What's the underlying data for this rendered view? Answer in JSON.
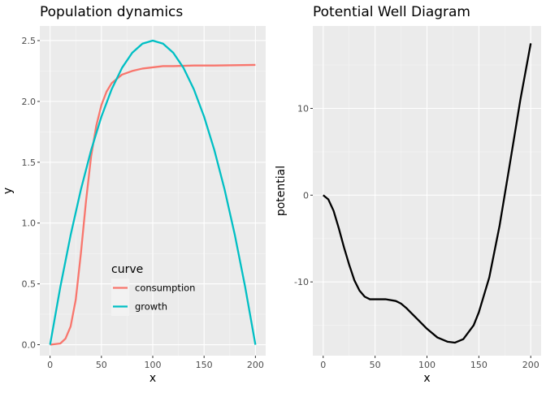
{
  "chart_data": [
    {
      "type": "line",
      "title": "Population dynamics",
      "xlabel": "x",
      "ylabel": "y",
      "xlim": [
        -10,
        210
      ],
      "ylim": [
        -0.09,
        2.62
      ],
      "x_ticks": [
        0,
        50,
        100,
        150,
        200
      ],
      "y_ticks": [
        0.0,
        0.5,
        1.0,
        1.5,
        2.0,
        2.5
      ],
      "x_tick_labels": [
        "0",
        "50",
        "100",
        "150",
        "200"
      ],
      "y_tick_labels": [
        "0.0",
        "0.5",
        "1.0",
        "1.5",
        "2.0",
        "2.5"
      ],
      "grid": true,
      "legend": {
        "title": "curve",
        "position": "bottom-center inside"
      },
      "series": [
        {
          "name": "consumption",
          "color": "#F8766D",
          "x": [
            0,
            10,
            15,
            20,
            25,
            30,
            35,
            40,
            45,
            50,
            55,
            60,
            70,
            80,
            90,
            100,
            110,
            120,
            140,
            160,
            200
          ],
          "y": [
            0.0,
            0.01,
            0.05,
            0.15,
            0.37,
            0.75,
            1.18,
            1.55,
            1.8,
            1.97,
            2.08,
            2.15,
            2.22,
            2.25,
            2.27,
            2.28,
            2.29,
            2.29,
            2.295,
            2.295,
            2.3
          ]
        },
        {
          "name": "growth",
          "color": "#00BFC4",
          "x": [
            0,
            10,
            20,
            30,
            40,
            50,
            60,
            70,
            80,
            90,
            100,
            110,
            120,
            130,
            140,
            150,
            160,
            170,
            180,
            190,
            200
          ],
          "y": [
            0.0,
            0.475,
            0.9,
            1.275,
            1.6,
            1.875,
            2.1,
            2.275,
            2.4,
            2.475,
            2.5,
            2.475,
            2.4,
            2.275,
            2.1,
            1.875,
            1.6,
            1.275,
            0.9,
            0.475,
            0.0
          ]
        }
      ]
    },
    {
      "type": "line",
      "title": "Potential Well Diagram",
      "xlabel": "x",
      "ylabel": "potential",
      "xlim": [
        -10,
        210
      ],
      "ylim": [
        -18.5,
        19.5
      ],
      "x_ticks": [
        0,
        50,
        100,
        150,
        200
      ],
      "y_ticks": [
        -10,
        0,
        10
      ],
      "x_tick_labels": [
        "0",
        "50",
        "100",
        "150",
        "200"
      ],
      "y_tick_labels": [
        "-10",
        "0",
        "10"
      ],
      "grid": true,
      "series": [
        {
          "color": "#000000",
          "x": [
            0,
            5,
            10,
            15,
            20,
            25,
            30,
            35,
            40,
            45,
            50,
            60,
            70,
            75,
            80,
            90,
            100,
            110,
            120,
            127,
            135,
            145,
            150,
            160,
            170,
            180,
            190,
            200
          ],
          "y": [
            0.0,
            -0.5,
            -1.8,
            -3.8,
            -6.0,
            -8.0,
            -9.8,
            -11.0,
            -11.7,
            -12.0,
            -12.0,
            -12.0,
            -12.2,
            -12.5,
            -13.0,
            -14.2,
            -15.4,
            -16.4,
            -16.9,
            -17.0,
            -16.6,
            -15.0,
            -13.5,
            -9.5,
            -3.5,
            3.7,
            11.0,
            17.5
          ]
        }
      ]
    }
  ]
}
